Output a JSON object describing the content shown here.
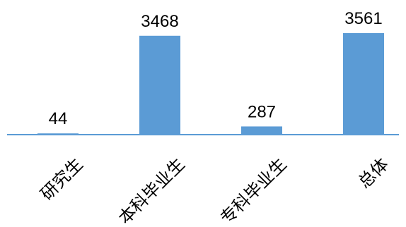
{
  "chart_data": {
    "type": "bar",
    "categories": [
      "研究生",
      "本科毕业生",
      "专科毕业生",
      "总体"
    ],
    "values": [
      44,
      3468,
      287,
      3561
    ],
    "data_labels": [
      "44",
      "3468",
      "287",
      "3561"
    ],
    "title": "",
    "xlabel": "",
    "ylabel": "",
    "ylim": [
      0,
      3561
    ],
    "grid": false,
    "legend": "none",
    "colors": {
      "bar": "#5B9BD5",
      "axis": "#5B9BD5",
      "text": "#000000"
    }
  }
}
